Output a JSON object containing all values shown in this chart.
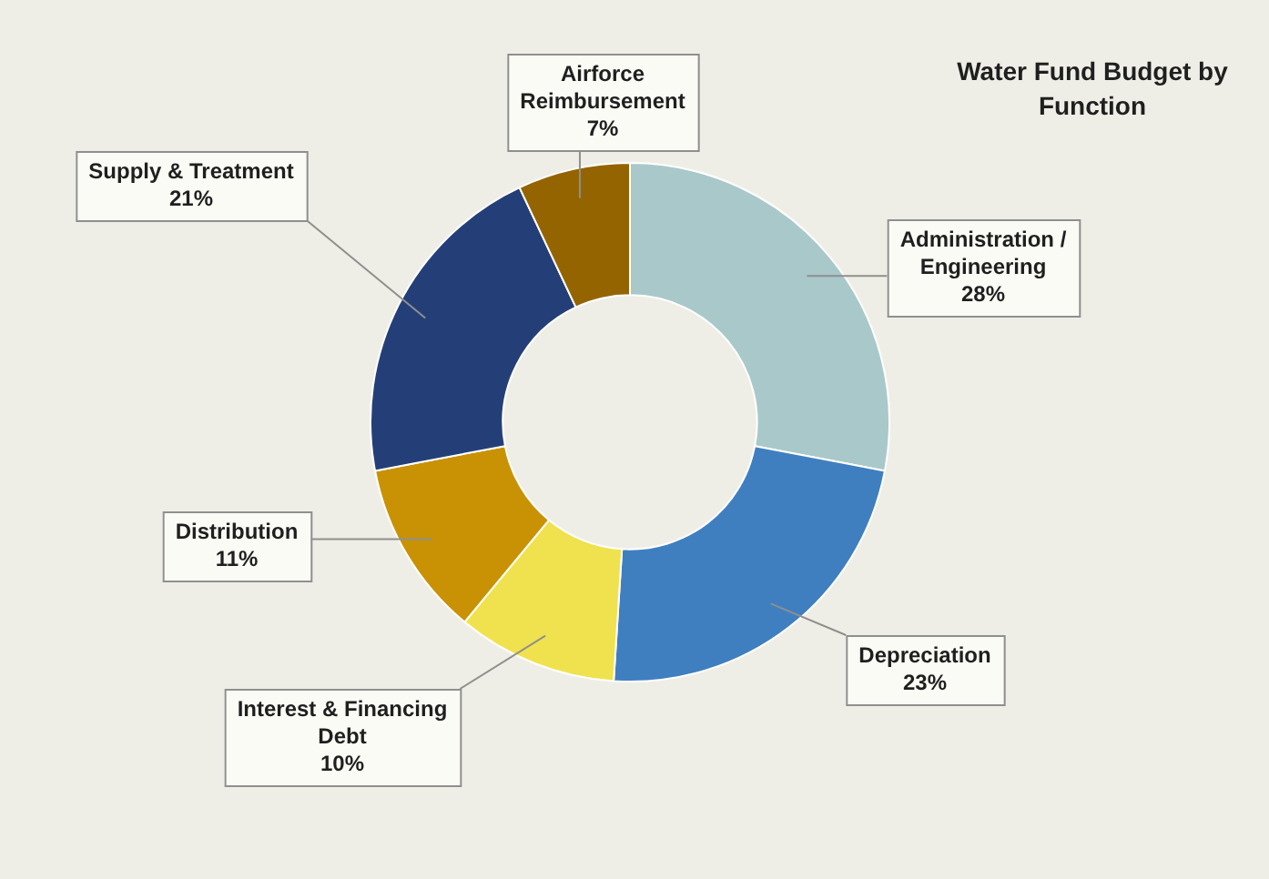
{
  "chart_data": {
    "type": "donut",
    "title": "Water Fund Budget by Function",
    "categories": [
      "Administration / Engineering",
      "Depreciation",
      "Interest & Financing Debt",
      "Distribution",
      "Supply & Treatment",
      "Airforce Reimbursement"
    ],
    "values": [
      28,
      23,
      10,
      11,
      21,
      7
    ],
    "value_labels": [
      "28%",
      "23%",
      "10%",
      "11%",
      "21%",
      "7%"
    ],
    "colors": [
      "#a9c8ca",
      "#3f7fc0",
      "#f0e24e",
      "#c99204",
      "#243f78",
      "#946400"
    ],
    "legend": false
  }
}
